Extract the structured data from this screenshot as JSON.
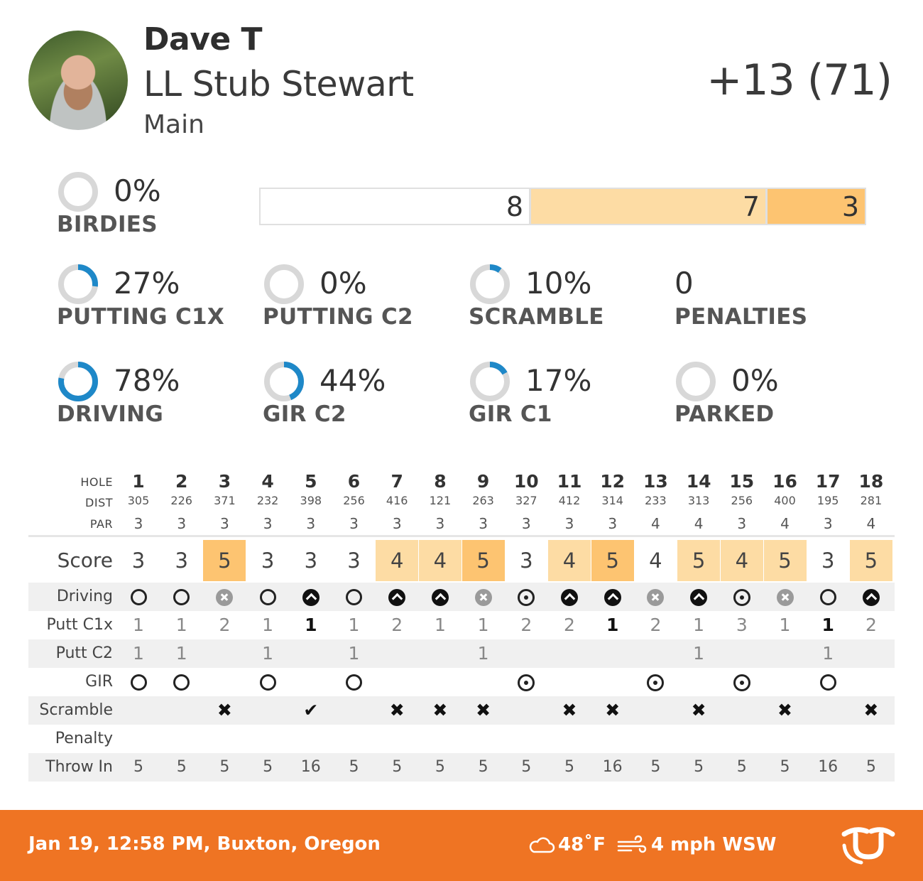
{
  "player": {
    "name": "Dave T",
    "course": "LL Stub Stewart",
    "layout": "Main",
    "total": "+13 (71)"
  },
  "colors": {
    "bogey": "#fddca4",
    "double": "#fdc471",
    "donut_fill": "#1e88c8",
    "donut_track": "#d8d8d8",
    "footer": "#ef7423"
  },
  "stats": {
    "birdies": {
      "pct": "0%",
      "label": "BIRDIES",
      "value": 0
    },
    "putting_c1x": {
      "pct": "27%",
      "label": "PUTTING C1X",
      "value": 0.27
    },
    "putting_c2": {
      "pct": "0%",
      "label": "PUTTING C2",
      "value": 0
    },
    "scramble": {
      "pct": "10%",
      "label": "SCRAMBLE",
      "value": 0.1
    },
    "penalties": {
      "pct": "0",
      "label": "PENALTIES"
    },
    "driving": {
      "pct": "78%",
      "label": "DRIVING",
      "value": 0.78
    },
    "gir_c2": {
      "pct": "44%",
      "label": "GIR C2",
      "value": 0.44
    },
    "gir_c1": {
      "pct": "17%",
      "label": "GIR C1",
      "value": 0.17
    },
    "parked": {
      "pct": "0%",
      "label": "PARKED",
      "value": 0
    }
  },
  "score_distribution": {
    "par": "8",
    "bogey": "7",
    "double": "3"
  },
  "scorecard": {
    "labels": {
      "hole": "HOLE",
      "dist": "DIST",
      "par": "PAR",
      "score": "Score",
      "driving": "Driving",
      "putt_c1x": "Putt C1x",
      "putt_c2": "Putt C2",
      "gir": "GIR",
      "scramble": "Scramble",
      "penalty": "Penalty",
      "throw_in": "Throw In"
    },
    "holes": [
      "1",
      "2",
      "3",
      "4",
      "5",
      "6",
      "7",
      "8",
      "9",
      "10",
      "11",
      "12",
      "13",
      "14",
      "15",
      "16",
      "17",
      "18"
    ],
    "dist": [
      "305",
      "226",
      "371",
      "232",
      "398",
      "256",
      "416",
      "121",
      "263",
      "327",
      "412",
      "314",
      "233",
      "313",
      "256",
      "400",
      "195",
      "281"
    ],
    "par": [
      "3",
      "3",
      "3",
      "3",
      "3",
      "3",
      "3",
      "3",
      "3",
      "3",
      "3",
      "3",
      "4",
      "4",
      "3",
      "4",
      "3",
      "4"
    ],
    "score": [
      "3",
      "3",
      "5",
      "3",
      "3",
      "3",
      "4",
      "4",
      "5",
      "3",
      "4",
      "5",
      "4",
      "5",
      "4",
      "5",
      "3",
      "5"
    ],
    "score_class": [
      "par",
      "par",
      "double",
      "par",
      "par",
      "par",
      "bogey",
      "bogey",
      "double",
      "par",
      "bogey",
      "double",
      "par",
      "bogey",
      "bogey",
      "bogey",
      "par",
      "bogey"
    ],
    "driving": [
      "open",
      "open",
      "x",
      "open",
      "up",
      "open",
      "up",
      "up",
      "x",
      "dot",
      "up",
      "up",
      "x",
      "up",
      "dot",
      "x",
      "open",
      "up"
    ],
    "putt_c1x": [
      "1",
      "1",
      "2",
      "1",
      "1",
      "1",
      "2",
      "1",
      "1",
      "2",
      "2",
      "1",
      "2",
      "1",
      "3",
      "1",
      "1",
      "2"
    ],
    "putt_c1x_bold": [
      false,
      false,
      false,
      false,
      true,
      false,
      false,
      false,
      false,
      false,
      false,
      true,
      false,
      false,
      false,
      false,
      true,
      false
    ],
    "putt_c2": [
      "1",
      "1",
      "",
      "1",
      "",
      "1",
      "",
      "",
      "1",
      "",
      "",
      "",
      "",
      "1",
      "",
      "",
      "1",
      ""
    ],
    "gir": [
      "open",
      "open",
      "",
      "open",
      "",
      "open",
      "",
      "",
      "",
      "dot",
      "",
      "",
      "dot",
      "",
      "dot",
      "",
      "open",
      ""
    ],
    "scramble": [
      "",
      "",
      "x",
      "",
      "check",
      "",
      "x",
      "x",
      "x",
      "",
      "x",
      "x",
      "",
      "x",
      "",
      "x",
      "",
      "x"
    ],
    "penalty": [
      "",
      "",
      "",
      "",
      "",
      "",
      "",
      "",
      "",
      "",
      "",
      "",
      "",
      "",
      "",
      "",
      "",
      ""
    ],
    "throw_in": [
      "5",
      "5",
      "5",
      "5",
      "16",
      "5",
      "5",
      "5",
      "5",
      "5",
      "5",
      "16",
      "5",
      "5",
      "5",
      "5",
      "16",
      "5"
    ]
  },
  "footer": {
    "date_location": "Jan 19, 12:58 PM, Buxton, Oregon",
    "temperature": "48˚F",
    "wind": "4 mph WSW"
  }
}
